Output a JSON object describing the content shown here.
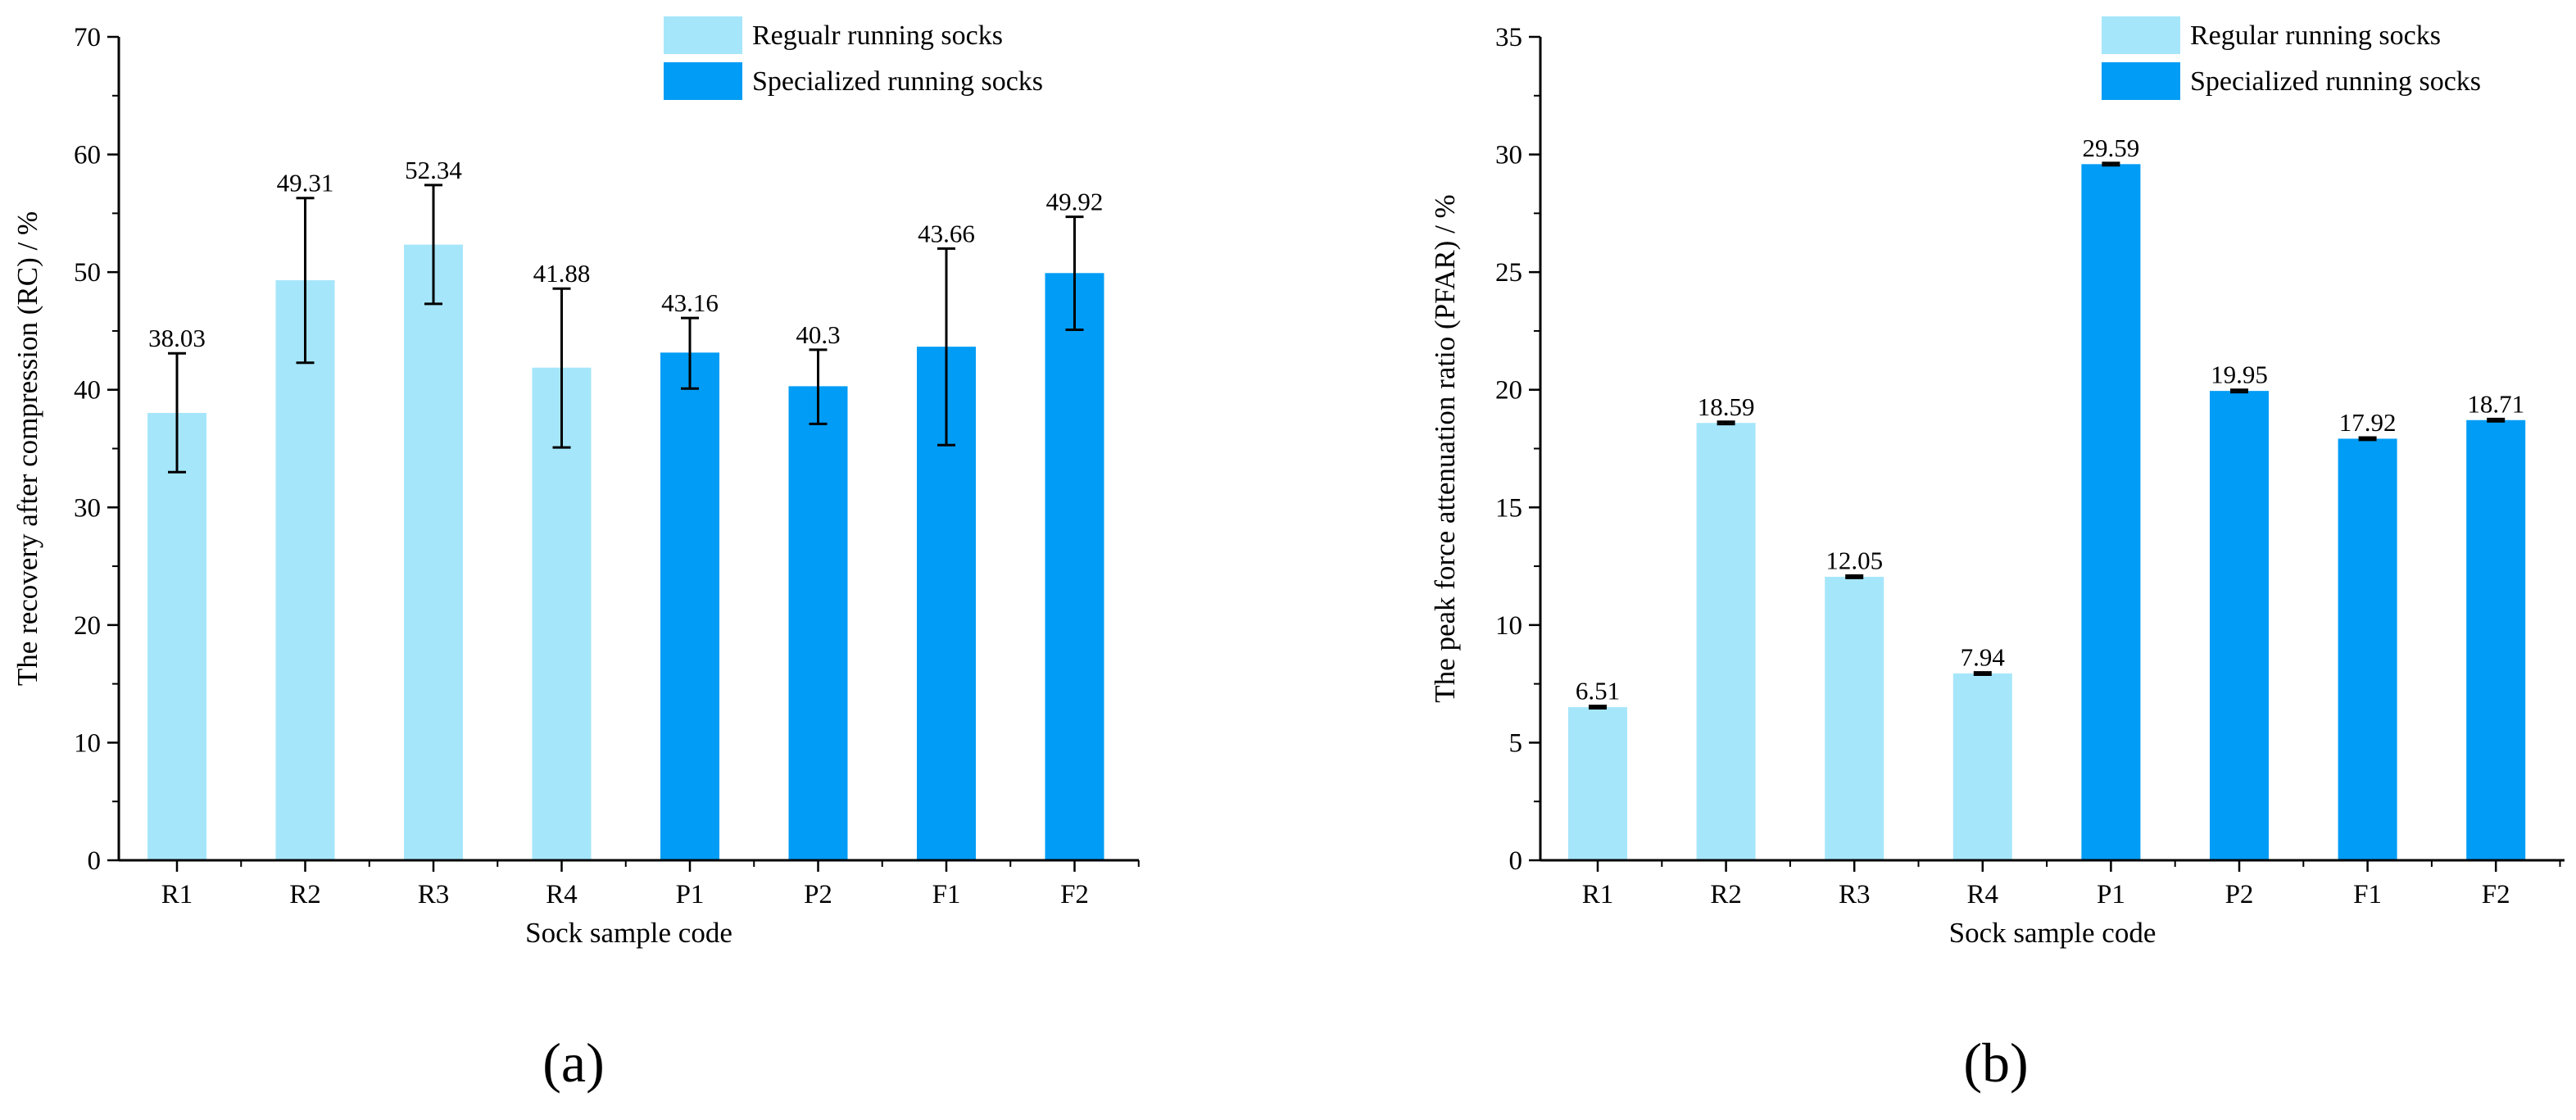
{
  "chart_data": [
    {
      "type": "bar",
      "panel": "a",
      "panel_label": "(a)",
      "categories": [
        "R1",
        "R2",
        "R3",
        "R4",
        "P1",
        "P2",
        "F1",
        "F2"
      ],
      "values": [
        38.03,
        49.31,
        52.34,
        41.88,
        43.16,
        40.3,
        43.66,
        49.92
      ],
      "value_labels": [
        "38.03",
        "49.31",
        "52.34",
        "41.88",
        "43.16",
        "40.3",
        "43.66",
        "49.92"
      ],
      "error_low": [
        33.0,
        42.3,
        47.3,
        35.1,
        40.1,
        37.1,
        35.3,
        45.1
      ],
      "error_high": [
        43.1,
        56.3,
        57.4,
        48.6,
        46.1,
        43.4,
        52.0,
        54.7
      ],
      "groups": [
        0,
        0,
        0,
        0,
        1,
        1,
        1,
        1
      ],
      "legend": [
        "Regualr running socks",
        "Specialized running socks"
      ],
      "group_colors": [
        "#a6e6fb",
        "#009cf5"
      ],
      "xlabel": "Sock sample code",
      "ylabel": "The recovery after compression (RC) / %",
      "ylim": [
        0,
        70
      ],
      "yticks": [
        0,
        10,
        20,
        30,
        40,
        50,
        60,
        70
      ],
      "legend_position": "top-right"
    },
    {
      "type": "bar",
      "panel": "b",
      "panel_label": "(b)",
      "categories": [
        "R1",
        "R2",
        "R3",
        "R4",
        "P1",
        "P2",
        "F1",
        "F2"
      ],
      "values": [
        6.51,
        18.59,
        12.05,
        7.94,
        29.59,
        19.95,
        17.92,
        18.71
      ],
      "value_labels": [
        "6.51",
        "18.59",
        "12.05",
        "7.94",
        "29.59",
        "19.95",
        "17.92",
        "18.71"
      ],
      "error_low": [
        6.46,
        18.54,
        12.0,
        7.89,
        29.54,
        19.9,
        17.87,
        18.66
      ],
      "error_high": [
        6.56,
        18.64,
        12.1,
        7.99,
        29.64,
        20.0,
        17.97,
        18.76
      ],
      "groups": [
        0,
        0,
        0,
        0,
        1,
        1,
        1,
        1
      ],
      "legend": [
        "Regular running socks",
        "Specialized running socks"
      ],
      "group_colors": [
        "#a6e6fb",
        "#009cf5"
      ],
      "xlabel": "Sock sample code",
      "ylabel": "The peak force attenuation ratio (PFAR) / %",
      "ylim": [
        0,
        35
      ],
      "yticks": [
        0,
        5,
        10,
        15,
        20,
        25,
        30,
        35
      ],
      "legend_position": "top-right"
    }
  ]
}
